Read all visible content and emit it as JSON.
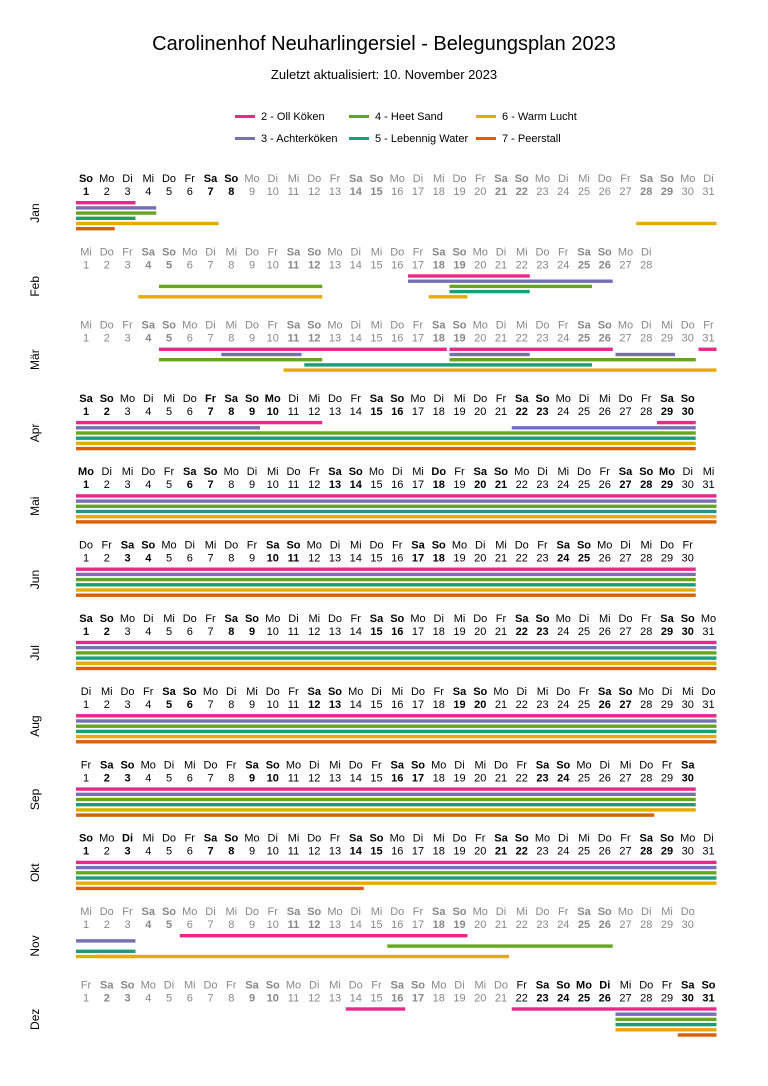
{
  "title": "Carolinenhof Neuharlingersiel - Belegungsplan 2023",
  "subtitle": "Zuletzt aktualisiert: 10. November 2023",
  "legend": [
    {
      "label": "2 - Oll Köken",
      "color": "#e7298a"
    },
    {
      "label": "3 - Achterköken",
      "color": "#7570b3"
    },
    {
      "label": "4 - Heet Sand",
      "color": "#66a61e"
    },
    {
      "label": "5 - Lebennig Water",
      "color": "#1b9e77"
    },
    {
      "label": "6 - Warm Lucht",
      "color": "#e6ab02"
    },
    {
      "label": "7 - Peerstall",
      "color": "#d95f02"
    }
  ],
  "chart_data": {
    "type": "gantt-calendar",
    "year": 2023,
    "x_unit": "day of month",
    "series": [
      "2 - Oll Köken",
      "3 - Achterköken",
      "4 - Heet Sand",
      "5 - Lebennig Water",
      "6 - Warm Lucht",
      "7 - Peerstall"
    ],
    "months": [
      {
        "label": "Jan",
        "days": 31,
        "first_weekday": 6,
        "holidays": [
          1
        ],
        "bookings": [
          [
            [
              1,
              3
            ]
          ],
          [
            [
              1,
              4
            ]
          ],
          [
            [
              1,
              4
            ]
          ],
          [
            [
              1,
              3
            ]
          ],
          [
            [
              1,
              7
            ],
            [
              28,
              31
            ]
          ],
          [
            [
              1,
              2
            ]
          ]
        ]
      },
      {
        "label": "Feb",
        "days": 28,
        "first_weekday": 2,
        "holidays": [],
        "bookings": [
          [
            [
              17,
              22
            ]
          ],
          [
            [
              17,
              26
            ]
          ],
          [
            [
              5,
              12
            ],
            [
              19,
              25
            ]
          ],
          [
            [
              19,
              22
            ]
          ],
          [
            [
              4,
              12
            ],
            [
              18,
              19
            ]
          ],
          []
        ]
      },
      {
        "label": "Mär",
        "days": 31,
        "first_weekday": 2,
        "holidays": [],
        "bookings": [
          [
            [
              5,
              18
            ],
            [
              19,
              26
            ],
            [
              31,
              31
            ]
          ],
          [
            [
              8,
              11
            ],
            [
              19,
              22
            ],
            [
              27,
              29
            ]
          ],
          [
            [
              5,
              12
            ],
            [
              19,
              30
            ]
          ],
          [
            [
              12,
              25
            ]
          ],
          [
            [
              11,
              31
            ]
          ],
          []
        ]
      },
      {
        "label": "Apr",
        "days": 30,
        "first_weekday": 5,
        "holidays": [
          7,
          9,
          10
        ],
        "bookings": [
          [
            [
              1,
              12
            ],
            [
              29,
              30
            ]
          ],
          [
            [
              1,
              9
            ],
            [
              22,
              30
            ]
          ],
          [
            [
              1,
              30
            ]
          ],
          [
            [
              1,
              30
            ]
          ],
          [
            [
              1,
              30
            ]
          ],
          [
            [
              1,
              30
            ]
          ]
        ]
      },
      {
        "label": "Mai",
        "days": 31,
        "first_weekday": 0,
        "holidays": [
          1,
          18,
          28,
          29
        ],
        "bookings": [
          [
            [
              1,
              31
            ]
          ],
          [
            [
              1,
              31
            ]
          ],
          [
            [
              1,
              31
            ]
          ],
          [
            [
              1,
              31
            ]
          ],
          [
            [
              1,
              31
            ]
          ],
          [
            [
              1,
              31
            ]
          ]
        ]
      },
      {
        "label": "Jun",
        "days": 30,
        "first_weekday": 3,
        "holidays": [],
        "bookings": [
          [
            [
              1,
              30
            ]
          ],
          [
            [
              1,
              30
            ]
          ],
          [
            [
              1,
              30
            ]
          ],
          [
            [
              1,
              30
            ]
          ],
          [
            [
              1,
              30
            ]
          ],
          [
            [
              1,
              30
            ]
          ]
        ]
      },
      {
        "label": "Jul",
        "days": 31,
        "first_weekday": 5,
        "holidays": [],
        "bookings": [
          [
            [
              1,
              31
            ]
          ],
          [
            [
              1,
              31
            ]
          ],
          [
            [
              1,
              31
            ]
          ],
          [
            [
              1,
              31
            ]
          ],
          [
            [
              1,
              31
            ]
          ],
          [
            [
              1,
              31
            ]
          ]
        ]
      },
      {
        "label": "Aug",
        "days": 31,
        "first_weekday": 1,
        "holidays": [],
        "bookings": [
          [
            [
              1,
              31
            ]
          ],
          [
            [
              1,
              31
            ]
          ],
          [
            [
              1,
              31
            ]
          ],
          [
            [
              1,
              31
            ]
          ],
          [
            [
              1,
              31
            ]
          ],
          [
            [
              1,
              31
            ]
          ]
        ]
      },
      {
        "label": "Sep",
        "days": 30,
        "first_weekday": 4,
        "holidays": [],
        "bookings": [
          [
            [
              1,
              30
            ]
          ],
          [
            [
              1,
              30
            ]
          ],
          [
            [
              1,
              30
            ]
          ],
          [
            [
              1,
              30
            ]
          ],
          [
            [
              1,
              30
            ]
          ],
          [
            [
              1,
              28
            ]
          ]
        ]
      },
      {
        "label": "Okt",
        "days": 31,
        "first_weekday": 6,
        "holidays": [
          3
        ],
        "bookings": [
          [
            [
              1,
              31
            ]
          ],
          [
            [
              1,
              31
            ]
          ],
          [
            [
              1,
              31
            ]
          ],
          [
            [
              1,
              31
            ]
          ],
          [
            [
              1,
              31
            ]
          ],
          [
            [
              1,
              14
            ]
          ]
        ]
      },
      {
        "label": "Nov",
        "days": 30,
        "first_weekday": 2,
        "holidays": [],
        "bookings": [
          [
            [
              6,
              19
            ]
          ],
          [
            [
              1,
              3
            ]
          ],
          [
            [
              16,
              26
            ]
          ],
          [
            [
              1,
              3
            ]
          ],
          [
            [
              1,
              3
            ],
            [
              2,
              21
            ]
          ],
          []
        ]
      },
      {
        "label": "Dez",
        "days": 31,
        "first_weekday": 4,
        "holidays": [
          25,
          26
        ],
        "bookings": [
          [
            [
              14,
              16
            ],
            [
              22,
              31
            ]
          ],
          [
            [
              27,
              31
            ]
          ],
          [
            [
              27,
              31
            ]
          ],
          [
            [
              27,
              31
            ]
          ],
          [
            [
              27,
              31
            ]
          ],
          [
            [
              30,
              31
            ]
          ]
        ]
      }
    ]
  }
}
